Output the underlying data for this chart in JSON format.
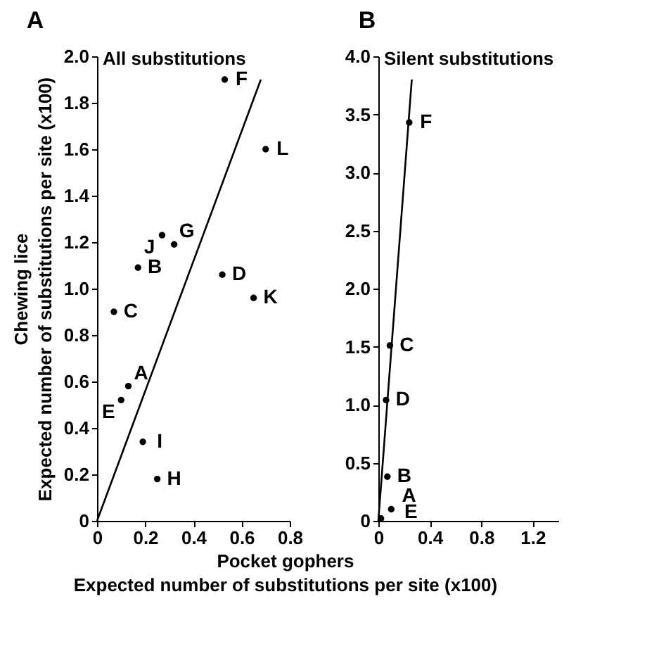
{
  "chart_data": [
    {
      "type": "scatter",
      "title": "A",
      "ylabel": "Chewing lice\nExpected number of substitutions per site (x100)",
      "xlabel": "Pocket gophers\nExpected number of substitutions per site (x100)",
      "xlim": [
        0,
        0.8
      ],
      "xticks": [
        0,
        0.2,
        0.4,
        0.6,
        0.8
      ],
      "ylim": [
        0,
        2.0
      ],
      "yticks": [
        0,
        0.2,
        0.4,
        0.6,
        0.8,
        {
          "value": 1.0,
          "label": "1.0"
        },
        1.2,
        1.4,
        1.6,
        1.8,
        {
          "value": 2.0,
          "label": "2.0"
        }
      ],
      "grid": false,
      "series": [
        {
          "type": "scatter",
          "marker": "circle",
          "color": "#000000",
          "x": [
            0.53,
            0.7,
            0.32,
            0.27,
            0.17,
            0.52,
            0.65,
            0.07,
            0.13,
            0.1,
            0.19,
            0.25
          ],
          "values": [
            1.9,
            1.6,
            1.19,
            1.23,
            1.09,
            1.06,
            0.96,
            0.9,
            0.58,
            0.52,
            0.34,
            0.18
          ]
        },
        {
          "type": "line",
          "color": "#000000",
          "x": [
            0,
            0.68
          ],
          "values": [
            0,
            1.9
          ]
        }
      ],
      "annotations": [
        "All substitutions",
        {
          "text": "F",
          "x": 0.53,
          "y": 1.9
        },
        {
          "text": "L",
          "x": 0.7,
          "y": 1.6
        },
        {
          "text": "G",
          "x": 0.32,
          "y": 1.19
        },
        {
          "text": "J",
          "x": 0.27,
          "y": 1.23
        },
        {
          "text": "B",
          "x": 0.17,
          "y": 1.09
        },
        {
          "text": "D",
          "x": 0.52,
          "y": 1.06
        },
        {
          "text": "K",
          "x": 0.65,
          "y": 0.96
        },
        {
          "text": "C",
          "x": 0.07,
          "y": 0.9
        },
        {
          "text": "A",
          "x": 0.13,
          "y": 0.58
        },
        {
          "text": "E",
          "x": 0.1,
          "y": 0.52
        },
        {
          "text": "I",
          "x": 0.19,
          "y": 0.34
        },
        {
          "text": "H",
          "x": 0.25,
          "y": 0.18
        }
      ]
    },
    {
      "type": "scatter",
      "title": "B",
      "xlim": [
        0,
        1.4
      ],
      "xticks": [
        0,
        0.4,
        0.8,
        1.2
      ],
      "ylim": [
        0,
        4.0
      ],
      "yticks": [
        0,
        0.5,
        {
          "value": 1.0,
          "label": "1.0"
        },
        1.5,
        {
          "value": 2.0,
          "label": "2.0"
        },
        2.5,
        {
          "value": 3.0,
          "label": "3.0"
        },
        3.5,
        {
          "value": 4.0,
          "label": "4.0"
        }
      ],
      "grid": false,
      "series": [
        {
          "type": "scatter",
          "marker": "circle",
          "color": "#000000",
          "x": [
            0.24,
            0.09,
            0.06,
            0.07,
            0.02,
            0.1
          ],
          "values": [
            3.43,
            1.51,
            1.04,
            0.38,
            0.02,
            0.1
          ]
        },
        {
          "type": "line",
          "color": "#000000",
          "x": [
            0,
            0.26
          ],
          "values": [
            0,
            3.8
          ]
        }
      ],
      "annotations": [
        "Silent substitutions",
        {
          "text": "F",
          "x": 0.24,
          "y": 3.43
        },
        {
          "text": "C",
          "x": 0.09,
          "y": 1.51
        },
        {
          "text": "D",
          "x": 0.06,
          "y": 1.04
        },
        {
          "text": "B",
          "x": 0.07,
          "y": 0.38
        },
        {
          "text": "A",
          "x": 0.02,
          "y": 0.02
        },
        {
          "text": "E",
          "x": 0.1,
          "y": 0.1
        }
      ]
    }
  ]
}
